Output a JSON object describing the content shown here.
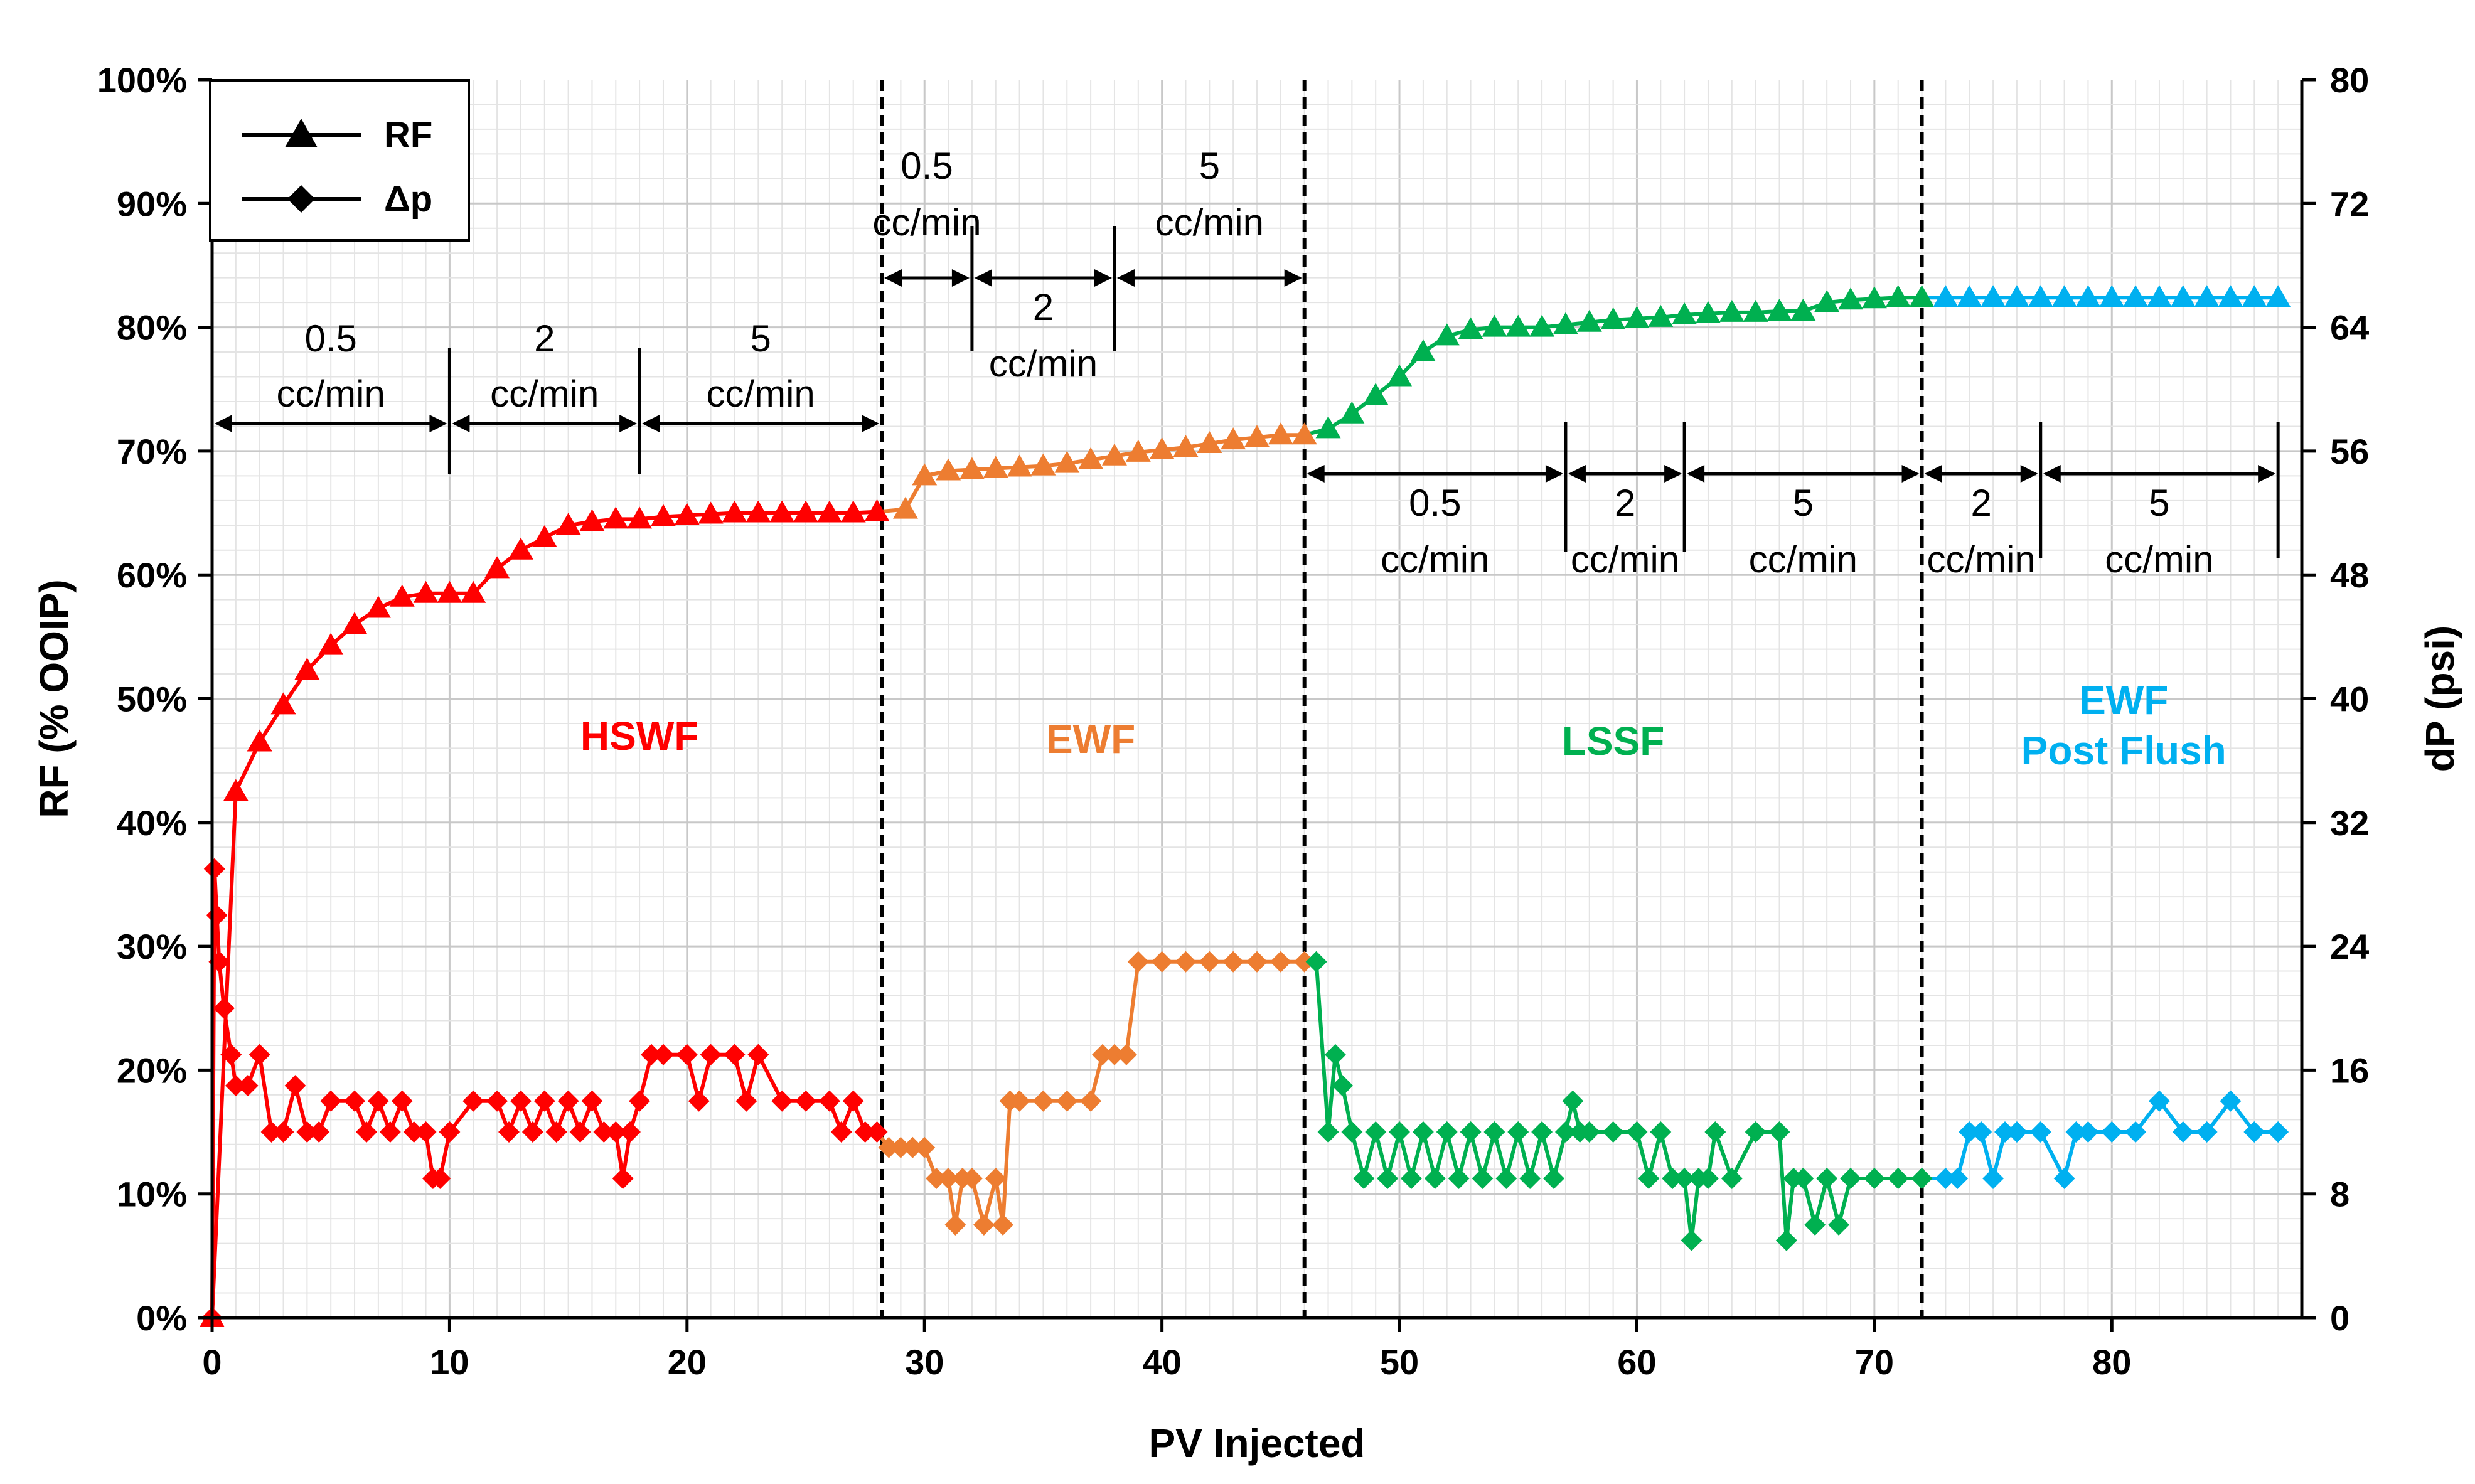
{
  "chart_data": {
    "type": "line",
    "xlabel": "PV Injected",
    "ylabel_left": "RF (% OOIP)",
    "ylabel_right": "dP (psi)",
    "xlim": [
      0,
      88
    ],
    "ylim_left": [
      0,
      100
    ],
    "ylim_right": [
      0,
      80
    ],
    "x_ticks": [
      "0",
      "10",
      "20",
      "30",
      "40",
      "50",
      "60",
      "70",
      "80"
    ],
    "y_ticks_left": [
      "0%",
      "10%",
      "20%",
      "30%",
      "40%",
      "50%",
      "60%",
      "70%",
      "80%",
      "90%",
      "100%"
    ],
    "y_ticks_right": [
      "0",
      "8",
      "16",
      "24",
      "32",
      "40",
      "48",
      "56",
      "64",
      "72",
      "80"
    ],
    "grid": "on",
    "legend": {
      "position": "top-left",
      "entries": [
        {
          "label": "RF",
          "marker": "triangle"
        },
        {
          "label": "Δp",
          "marker": "diamond"
        }
      ]
    },
    "phase_boundaries": [
      28.2,
      46,
      72
    ],
    "phases": [
      {
        "name": "HSWF",
        "color": "#ff0000",
        "x_range": [
          0,
          28.2
        ]
      },
      {
        "name": "EWF",
        "color": "#ed7d31",
        "x_range": [
          28.2,
          46
        ]
      },
      {
        "name": "LSSF",
        "color": "#00b050",
        "x_range": [
          46,
          72
        ]
      },
      {
        "name": "EWF Post Flush",
        "line1": "EWF",
        "line2": "Post Flush",
        "color": "#00b0f0",
        "x_range": [
          72,
          87.5
        ]
      }
    ],
    "rate_annotations": [
      {
        "line1": "0.5",
        "line2": "cc/min",
        "from": 0,
        "to": 10
      },
      {
        "line1": "2",
        "line2": "cc/min",
        "from": 10,
        "to": 18
      },
      {
        "line1": "5",
        "line2": "cc/min",
        "from": 18,
        "to": 28.2
      },
      {
        "line1": "0.5",
        "line2": "cc/min",
        "from": 28.2,
        "to": 32
      },
      {
        "line1": "2",
        "line2": "cc/min",
        "from": 32,
        "to": 38
      },
      {
        "line1": "5",
        "line2": "cc/min",
        "from": 38,
        "to": 46
      },
      {
        "line1": "0.5",
        "line2": "cc/min",
        "from": 46,
        "to": 57
      },
      {
        "line1": "2",
        "line2": "cc/min",
        "from": 57,
        "to": 62
      },
      {
        "line1": "5",
        "line2": "cc/min",
        "from": 62,
        "to": 72
      },
      {
        "line1": "2",
        "line2": "cc/min",
        "from": 72,
        "to": 77
      },
      {
        "line1": "5",
        "line2": "cc/min",
        "from": 77,
        "to": 87
      }
    ],
    "series": [
      {
        "name": "RF",
        "axis": "left",
        "marker": "triangle",
        "points": [
          [
            0,
            0
          ],
          [
            1,
            42.5
          ],
          [
            2,
            46.5
          ],
          [
            3,
            49.5
          ],
          [
            4,
            52.3
          ],
          [
            5,
            54.3
          ],
          [
            6,
            56
          ],
          [
            7,
            57.3
          ],
          [
            8,
            58.2
          ],
          [
            9,
            58.5
          ],
          [
            10,
            58.5
          ],
          [
            11,
            58.5
          ],
          [
            12,
            60.5
          ],
          [
            13,
            62
          ],
          [
            14,
            63
          ],
          [
            15,
            64
          ],
          [
            16,
            64.3
          ],
          [
            17,
            64.5
          ],
          [
            18,
            64.5
          ],
          [
            19,
            64.7
          ],
          [
            20,
            64.8
          ],
          [
            21,
            64.9
          ],
          [
            22,
            65
          ],
          [
            23,
            65
          ],
          [
            24,
            65
          ],
          [
            25,
            65
          ],
          [
            26,
            65
          ],
          [
            27,
            65
          ],
          [
            28,
            65.1
          ],
          [
            29.2,
            65.3
          ],
          [
            30,
            68
          ],
          [
            31,
            68.4
          ],
          [
            32,
            68.5
          ],
          [
            33,
            68.6
          ],
          [
            34,
            68.7
          ],
          [
            35,
            68.8
          ],
          [
            36,
            69
          ],
          [
            37,
            69.3
          ],
          [
            38,
            69.6
          ],
          [
            39,
            69.9
          ],
          [
            40,
            70.1
          ],
          [
            41,
            70.3
          ],
          [
            42,
            70.6
          ],
          [
            43,
            70.9
          ],
          [
            44,
            71.1
          ],
          [
            45,
            71.3
          ],
          [
            46,
            71.3
          ],
          [
            47,
            71.8
          ],
          [
            48,
            73
          ],
          [
            49,
            74.5
          ],
          [
            50,
            76
          ],
          [
            51,
            78
          ],
          [
            52,
            79.3
          ],
          [
            53,
            79.8
          ],
          [
            54,
            80
          ],
          [
            55,
            80
          ],
          [
            56,
            80
          ],
          [
            57,
            80.2
          ],
          [
            58,
            80.4
          ],
          [
            59,
            80.6
          ],
          [
            60,
            80.7
          ],
          [
            61,
            80.8
          ],
          [
            62,
            81
          ],
          [
            63,
            81.1
          ],
          [
            64,
            81.2
          ],
          [
            65,
            81.2
          ],
          [
            66,
            81.3
          ],
          [
            67,
            81.3
          ],
          [
            68,
            82
          ],
          [
            69,
            82.2
          ],
          [
            70,
            82.3
          ],
          [
            71,
            82.4
          ],
          [
            72,
            82.4
          ],
          [
            73,
            82.4
          ],
          [
            74,
            82.4
          ],
          [
            75,
            82.4
          ],
          [
            76,
            82.4
          ],
          [
            77,
            82.4
          ],
          [
            78,
            82.4
          ],
          [
            79,
            82.4
          ],
          [
            80,
            82.4
          ],
          [
            81,
            82.4
          ],
          [
            82,
            82.4
          ],
          [
            83,
            82.4
          ],
          [
            84,
            82.4
          ],
          [
            85,
            82.4
          ],
          [
            86,
            82.4
          ],
          [
            87,
            82.4
          ]
        ]
      },
      {
        "name": "Δp",
        "axis": "right",
        "marker": "diamond",
        "points": [
          [
            0,
            0
          ],
          [
            0.1,
            29
          ],
          [
            0.2,
            26
          ],
          [
            0.3,
            23
          ],
          [
            0.5,
            20
          ],
          [
            0.8,
            17
          ],
          [
            1,
            15
          ],
          [
            1.5,
            15
          ],
          [
            2,
            17
          ],
          [
            2.5,
            12
          ],
          [
            3,
            12
          ],
          [
            3.5,
            15
          ],
          [
            4,
            12
          ],
          [
            4.5,
            12
          ],
          [
            5,
            14
          ],
          [
            6,
            14
          ],
          [
            6.5,
            12
          ],
          [
            7,
            14
          ],
          [
            7.5,
            12
          ],
          [
            8,
            14
          ],
          [
            8.5,
            12
          ],
          [
            9,
            12
          ],
          [
            9.3,
            9
          ],
          [
            9.6,
            9
          ],
          [
            10,
            12
          ],
          [
            11,
            14
          ],
          [
            12,
            14
          ],
          [
            12.5,
            12
          ],
          [
            13,
            14
          ],
          [
            13.5,
            12
          ],
          [
            14,
            14
          ],
          [
            14.5,
            12
          ],
          [
            15,
            14
          ],
          [
            15.5,
            12
          ],
          [
            16,
            14
          ],
          [
            16.5,
            12
          ],
          [
            17,
            12
          ],
          [
            17.3,
            9
          ],
          [
            17.6,
            12
          ],
          [
            18,
            14
          ],
          [
            18.5,
            17
          ],
          [
            19,
            17
          ],
          [
            20,
            17
          ],
          [
            20.5,
            14
          ],
          [
            21,
            17
          ],
          [
            22,
            17
          ],
          [
            22.5,
            14
          ],
          [
            23,
            17
          ],
          [
            24,
            14
          ],
          [
            25,
            14
          ],
          [
            26,
            14
          ],
          [
            26.5,
            12
          ],
          [
            27,
            14
          ],
          [
            27.5,
            12
          ],
          [
            28,
            12
          ],
          [
            28.5,
            11
          ],
          [
            29,
            11
          ],
          [
            29.5,
            11
          ],
          [
            30,
            11
          ],
          [
            30.5,
            9
          ],
          [
            31,
            9
          ],
          [
            31.3,
            6
          ],
          [
            31.6,
            9
          ],
          [
            32,
            9
          ],
          [
            32.5,
            6
          ],
          [
            33,
            9
          ],
          [
            33.3,
            6
          ],
          [
            33.6,
            14
          ],
          [
            34,
            14
          ],
          [
            35,
            14
          ],
          [
            36,
            14
          ],
          [
            37,
            14
          ],
          [
            37.5,
            17
          ],
          [
            38,
            17
          ],
          [
            38.5,
            17
          ],
          [
            39,
            23
          ],
          [
            40,
            23
          ],
          [
            41,
            23
          ],
          [
            42,
            23
          ],
          [
            43,
            23
          ],
          [
            44,
            23
          ],
          [
            45,
            23
          ],
          [
            46,
            23
          ],
          [
            46.5,
            23
          ],
          [
            47,
            12
          ],
          [
            47.3,
            17
          ],
          [
            47.6,
            15
          ],
          [
            48,
            12
          ],
          [
            48.5,
            9
          ],
          [
            49,
            12
          ],
          [
            49.5,
            9
          ],
          [
            50,
            12
          ],
          [
            50.5,
            9
          ],
          [
            51,
            12
          ],
          [
            51.5,
            9
          ],
          [
            52,
            12
          ],
          [
            52.5,
            9
          ],
          [
            53,
            12
          ],
          [
            53.5,
            9
          ],
          [
            54,
            12
          ],
          [
            54.5,
            9
          ],
          [
            55,
            12
          ],
          [
            55.5,
            9
          ],
          [
            56,
            12
          ],
          [
            56.5,
            9
          ],
          [
            57,
            12
          ],
          [
            57.3,
            14
          ],
          [
            57.6,
            12
          ],
          [
            58,
            12
          ],
          [
            59,
            12
          ],
          [
            60,
            12
          ],
          [
            60.5,
            9
          ],
          [
            61,
            12
          ],
          [
            61.5,
            9
          ],
          [
            62,
            9
          ],
          [
            62.3,
            5
          ],
          [
            62.6,
            9
          ],
          [
            63,
            9
          ],
          [
            63.3,
            12
          ],
          [
            64,
            9
          ],
          [
            65,
            12
          ],
          [
            66,
            12
          ],
          [
            66.3,
            5
          ],
          [
            66.6,
            9
          ],
          [
            67,
            9
          ],
          [
            67.5,
            6
          ],
          [
            68,
            9
          ],
          [
            68.5,
            6
          ],
          [
            69,
            9
          ],
          [
            70,
            9
          ],
          [
            71,
            9
          ],
          [
            72,
            9
          ],
          [
            73,
            9
          ],
          [
            73.5,
            9
          ],
          [
            74,
            12
          ],
          [
            74.5,
            12
          ],
          [
            75,
            9
          ],
          [
            75.5,
            12
          ],
          [
            76,
            12
          ],
          [
            77,
            12
          ],
          [
            78,
            9
          ],
          [
            78.5,
            12
          ],
          [
            79,
            12
          ],
          [
            80,
            12
          ],
          [
            81,
            12
          ],
          [
            82,
            14
          ],
          [
            83,
            12
          ],
          [
            84,
            12
          ],
          [
            85,
            14
          ],
          [
            86,
            12
          ],
          [
            87,
            12
          ]
        ]
      }
    ]
  }
}
